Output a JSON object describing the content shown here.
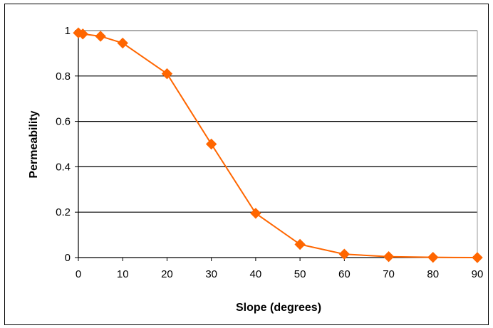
{
  "chart_data": {
    "type": "line",
    "title": "",
    "xlabel": "Slope (degrees)",
    "ylabel": "Permeability",
    "xlim": [
      0,
      90
    ],
    "ylim": [
      0,
      1
    ],
    "x_ticks": [
      "0",
      "10",
      "20",
      "30",
      "40",
      "50",
      "60",
      "70",
      "80",
      "90"
    ],
    "y_ticks": [
      "0",
      "0.2",
      "0.4",
      "0.6",
      "0.8",
      "1"
    ],
    "grid": "horizontal",
    "legend": "none",
    "series": [
      {
        "color": "#ff6600",
        "marker": "diamond",
        "x": [
          0,
          1,
          5,
          10,
          20,
          30,
          40,
          50,
          60,
          70,
          80,
          90
        ],
        "y": [
          0.99,
          0.985,
          0.975,
          0.945,
          0.81,
          0.5,
          0.195,
          0.058,
          0.015,
          0.004,
          0.001,
          0.0
        ]
      }
    ]
  }
}
